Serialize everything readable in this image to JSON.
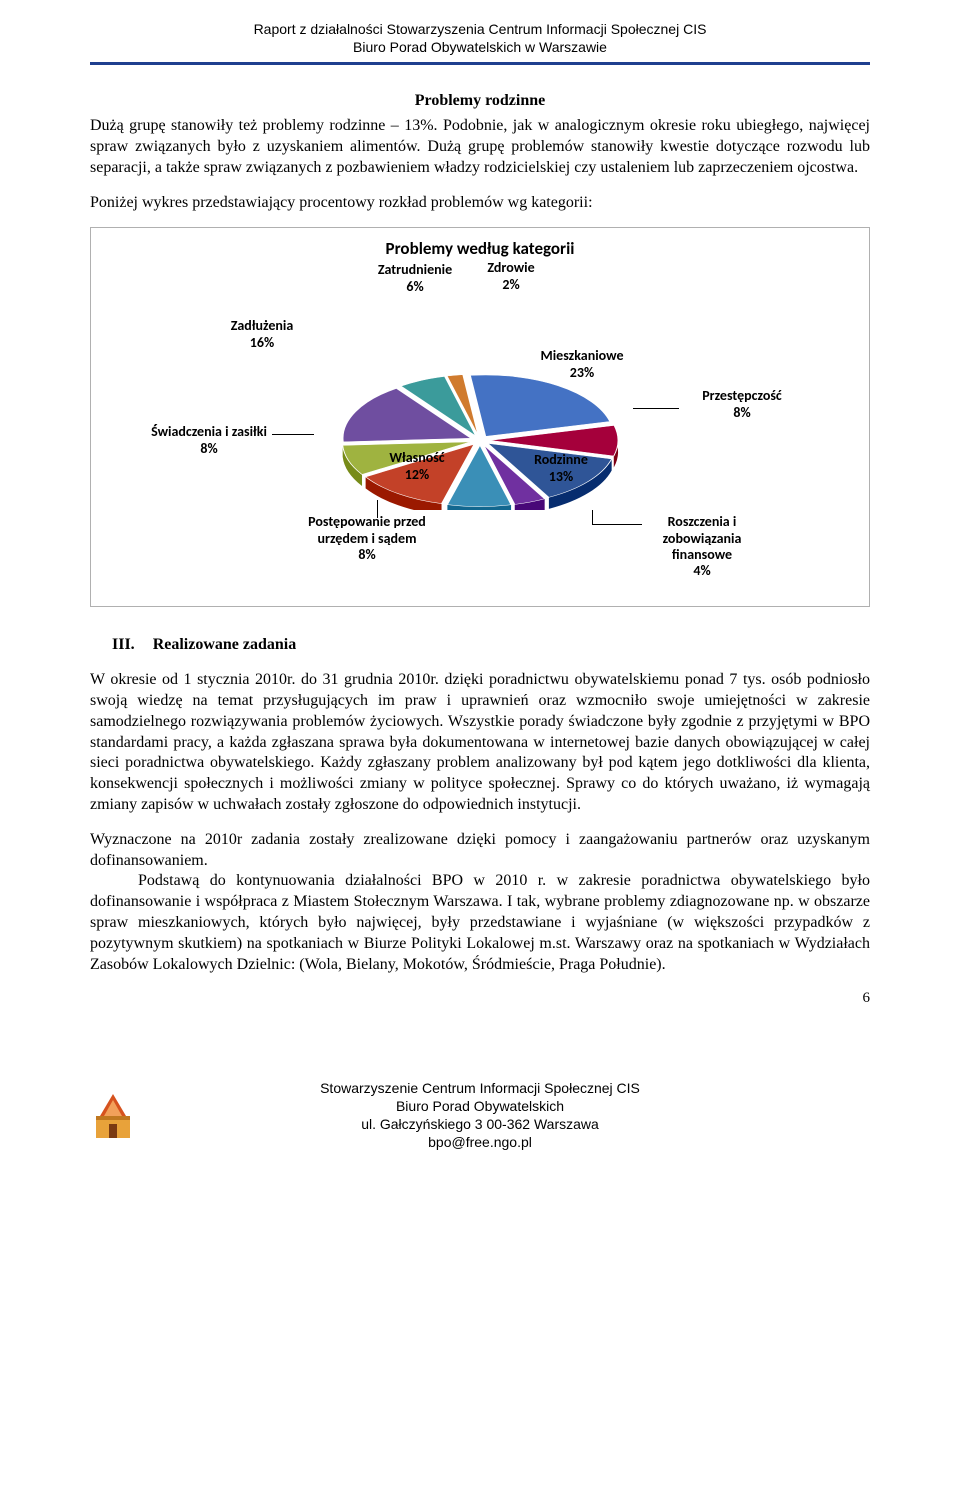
{
  "header": {
    "line1": "Raport z działalności Stowarzyszenia Centrum Informacji Społecznej CIS",
    "line2": "Biuro Porad Obywatelskich w Warszawie"
  },
  "section_title": "Problemy rodzinne",
  "para1": "Dużą grupę stanowiły też problemy rodzinne – 13%. Podobnie, jak w analogicznym okresie roku ubiegłego, najwięcej spraw związanych było z uzyskaniem alimentów. Dużą grupę problemów stanowiły kwestie dotyczące rozwodu lub separacji, a także spraw związanych z pozbawieniem władzy rodzicielskiej czy ustaleniem lub zaprzeczeniem ojcostwa.",
  "para2": "Poniżej wykres przedstawiający procentowy rozkład problemów wg kategorii:",
  "chart": {
    "title": "Problemy według kategorii",
    "type": "pie-3d",
    "background_color": "#ffffff",
    "slices": [
      {
        "label": "Mieszkaniowe",
        "pct": "23%",
        "value": 23,
        "color": "#4472c4"
      },
      {
        "label": "Przestępczość",
        "pct": "8%",
        "value": 8,
        "color": "#a5003b"
      },
      {
        "label": "Rodzinne",
        "pct": "13%",
        "value": 13,
        "color": "#2f5597"
      },
      {
        "label": "Roszczenia i zobowiązania finansowe",
        "pct": "4%",
        "value": 4,
        "color": "#7030a0"
      },
      {
        "label": "Postępowanie przed urzędem i sądem",
        "pct": "8%",
        "value": 8,
        "color": "#3a8fb7"
      },
      {
        "label": "Własność",
        "pct": "12%",
        "value": 12,
        "color": "#c34128"
      },
      {
        "label": "Świadczenia i zasiłki",
        "pct": "8%",
        "value": 8,
        "color": "#9fb340"
      },
      {
        "label": "Zadłużenia",
        "pct": "16%",
        "value": 16,
        "color": "#6f4ea0"
      },
      {
        "label": "Zatrudnienie",
        "pct": "6%",
        "value": 6,
        "color": "#3b9b9b"
      },
      {
        "label": "Zdrowie",
        "pct": "2%",
        "value": 2,
        "color": "#d07b2e"
      }
    ]
  },
  "h3_num": "III.",
  "h3_title": "Realizowane zadania",
  "para3": "W okresie od 1 stycznia 2010r. do 31 grudnia 2010r.  dzięki poradnictwu obywatelskiemu ponad 7 tys. osób podniosło swoją wiedzę na temat przysługujących im praw i uprawnień oraz wzmocniło swoje umiejętności w zakresie samodzielnego rozwiązywania problemów życiowych. Wszystkie porady świadczone były zgodnie z przyjętymi w BPO standardami pracy, a każda  zgłaszana sprawa była dokumentowana w internetowej bazie danych obowiązującej w całej sieci poradnictwa obywatelskiego. Każdy zgłaszany problem analizowany był pod kątem jego dotkliwości dla klienta, konsekwencji społecznych i możliwości zmiany w polityce społecznej. Sprawy co do których uważano, iż wymagają zmiany zapisów w uchwałach zostały zgłoszone do odpowiednich instytucji.",
  "para4": "Wyznaczone na 2010r zadania zostały zrealizowane dzięki pomocy i zaangażowaniu partnerów oraz uzyskanym dofinansowaniem.",
  "para5": "Podstawą do kontynuowania działalności BPO w 2010 r. w zakresie poradnictwa obywatelskiego było dofinansowanie i współpraca z Miastem Stołecznym Warszawa. I tak, wybrane problemy zdiagnozowane np. w obszarze spraw mieszkaniowych, których było najwięcej, były przedstawiane i wyjaśniane (w większości przypadków z pozytywnym skutkiem) na spotkaniach w Biurze Polityki Lokalowej m.st. Warszawy oraz na spotkaniach w Wydziałach Zasobów Lokalowych Dzielnic: (Wola, Bielany, Mokotów, Śródmieście, Praga Południe).",
  "page_number": "6",
  "footer": {
    "line1": "Stowarzyszenie Centrum Informacji Społecznej CIS",
    "line2": "Biuro Porad Obywatelskich",
    "line3": "ul. Gałczyńskiego 3 00-362 Warszawa",
    "line4": "bpo@free.ngo.pl"
  }
}
